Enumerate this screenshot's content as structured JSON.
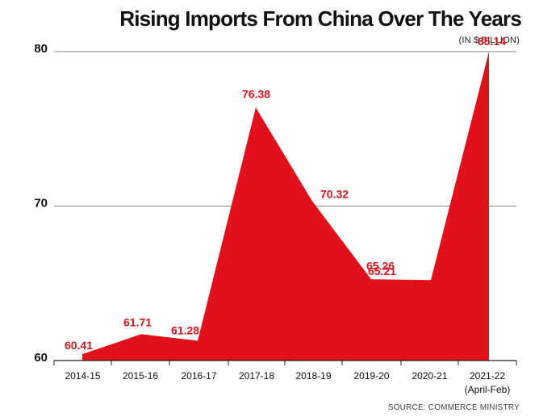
{
  "chart_data": {
    "type": "area",
    "title": "Rising Imports From China Over The Years",
    "unit_label": "(IN $ BILLION)",
    "source": "SOURCE: COMMERCE MINISTRY",
    "categories": [
      "2014-15",
      "2015-16",
      "2016-17",
      "2017-18",
      "2018-19",
      "2019-20",
      "2020-21",
      "2021-22"
    ],
    "category_sublabels": [
      "",
      "",
      "",
      "",
      "",
      "",
      "",
      "(April-Feb)"
    ],
    "series": [
      {
        "values": [
          60.41,
          61.71,
          61.28,
          76.38,
          70.32,
          65.26,
          65.21,
          85.14
        ],
        "labels": [
          "60.41",
          "61.71",
          "61.28",
          "76.38",
          "70.32",
          "65.26",
          "65.21",
          "85.14"
        ]
      }
    ],
    "yticks": [
      "60",
      "70",
      "80"
    ],
    "ylim": [
      60,
      80
    ],
    "grid": true,
    "colors": {
      "fill": "#e0111b",
      "label": "#d9151f",
      "grid": "#888888",
      "axis": "#222222"
    }
  }
}
